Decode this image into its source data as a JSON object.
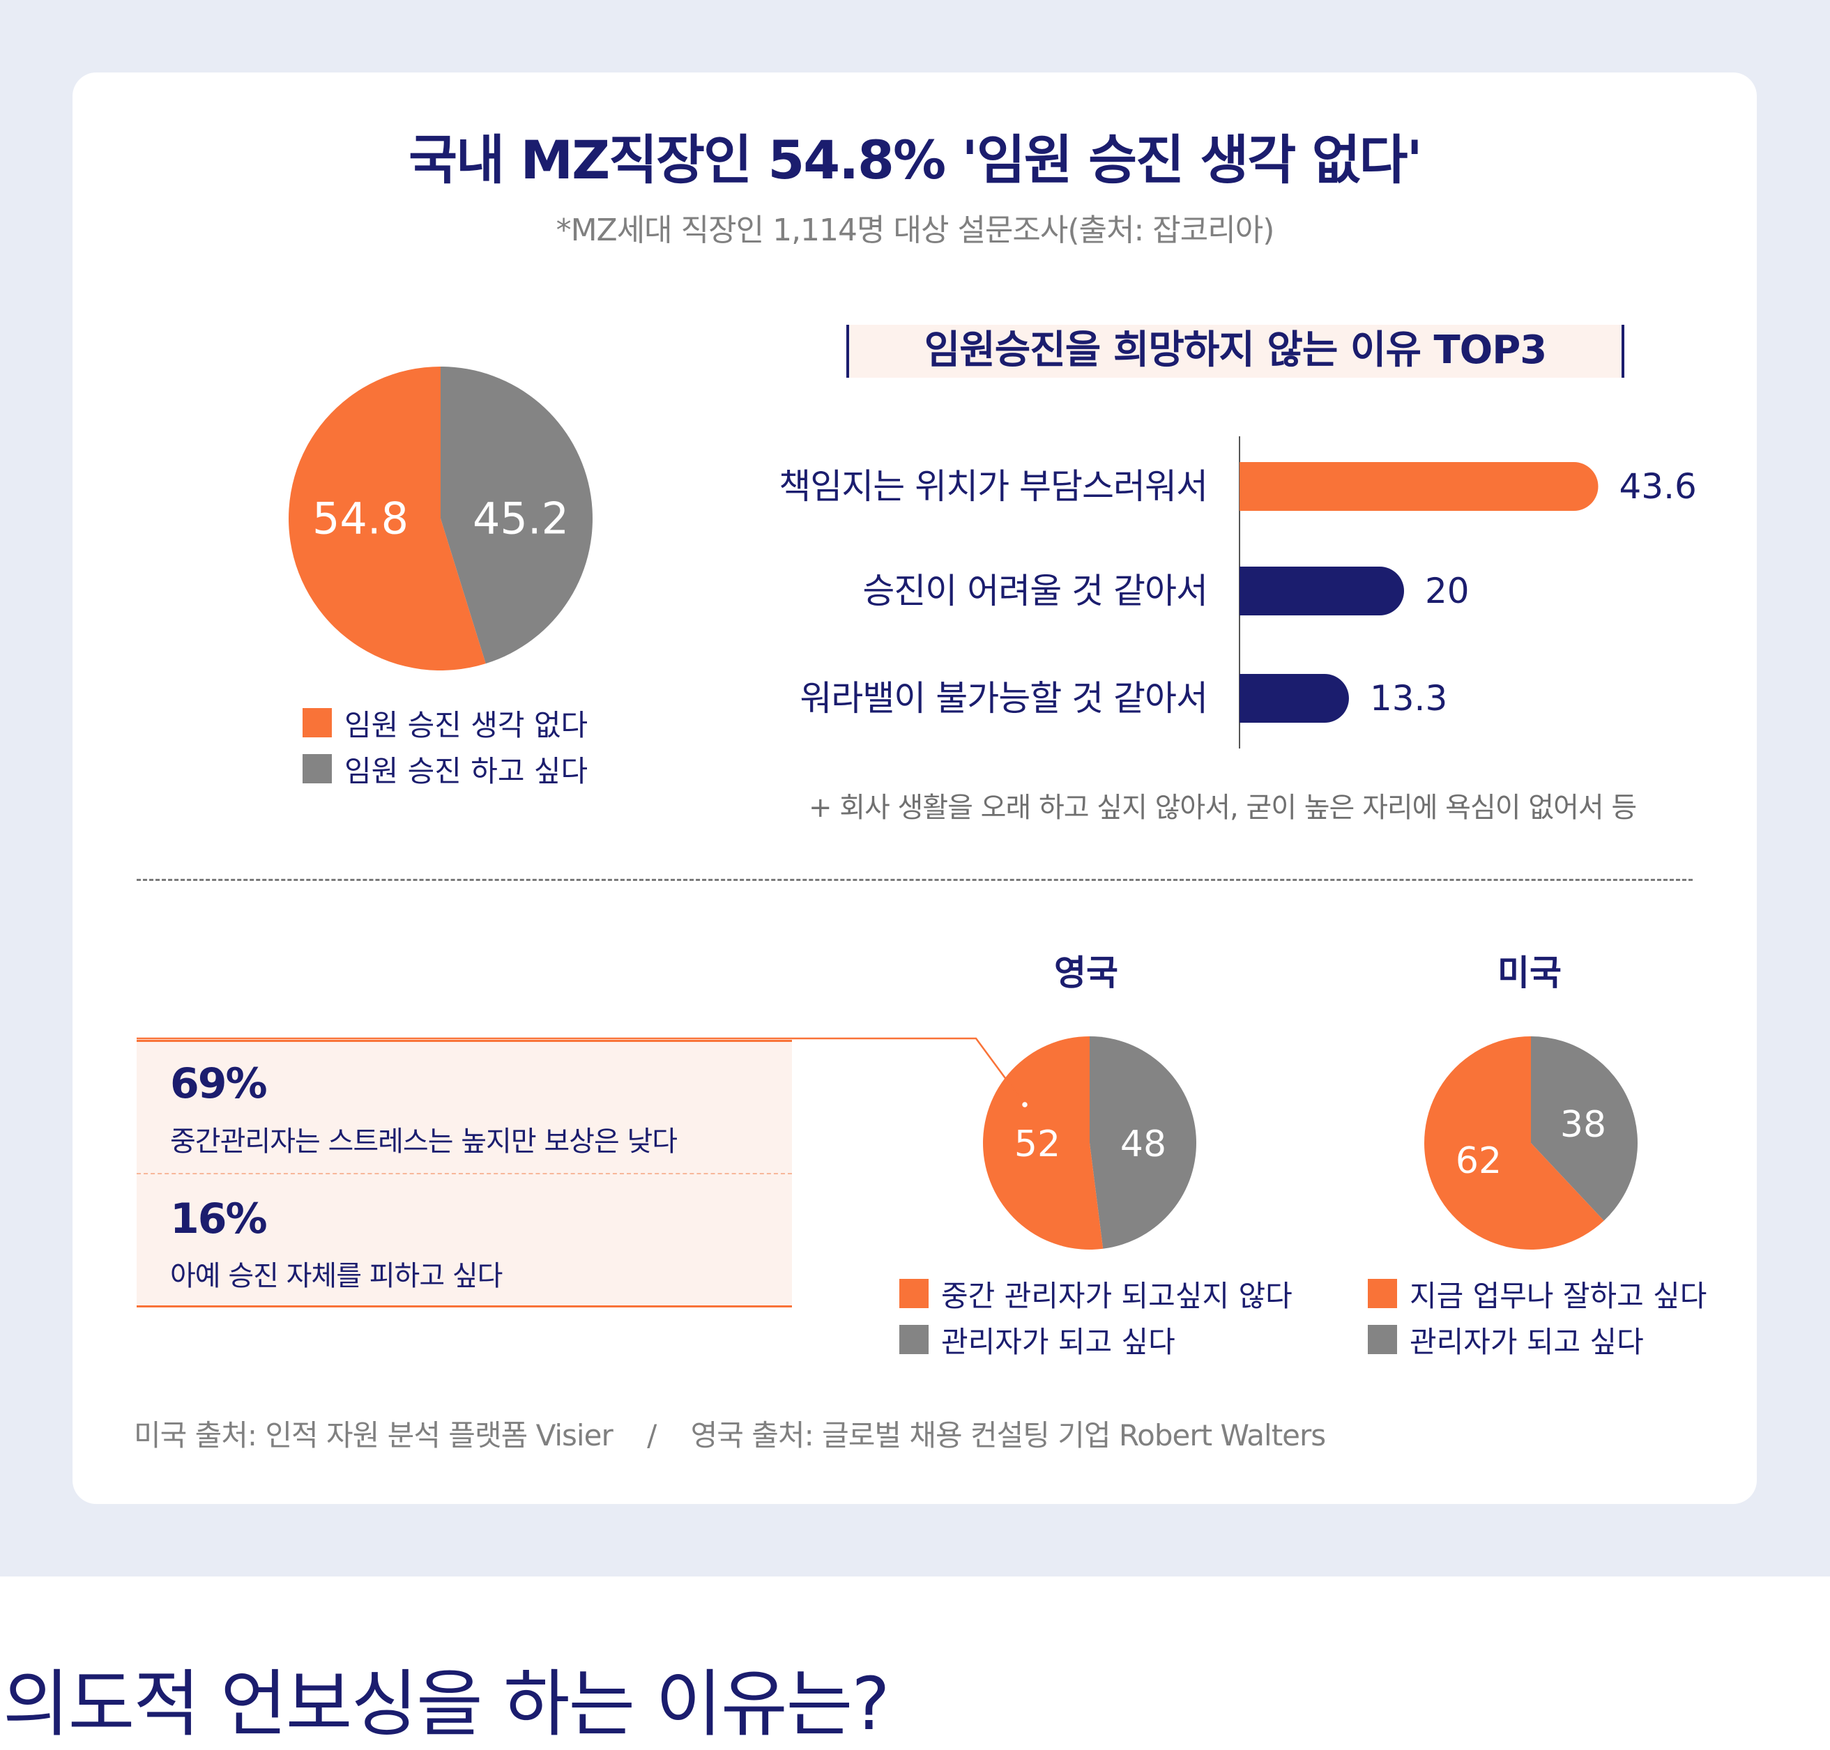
{
  "title": "국내 MZ직장인 54.8% '임원 승진 생각 없다'",
  "subtitle": "*MZ세대 직장인 1,114명 대상 설문조사(출처: 잡코리아)",
  "colors": {
    "orange": "#f97338",
    "gray": "#848484",
    "navy": "#1b1d6e"
  },
  "chart_data": [
    {
      "type": "pie",
      "slices": [
        {
          "label": "임원 승진 생각 없다",
          "value": 54.8,
          "display": "54.8",
          "color": "#f97338"
        },
        {
          "label": "임원 승진 하고 싶다",
          "value": 45.2,
          "display": "45.2",
          "color": "#848484"
        }
      ],
      "legend": [
        "임원 승진 생각 없다",
        "임원 승진 하고 싶다"
      ],
      "legend_position": "bottom"
    },
    {
      "type": "bar",
      "orientation": "horizontal",
      "title": "임원승진을 희망하지 않는 이유 TOP3",
      "categories": [
        "책임지는 위치가 부담스러워서",
        "승진이 어려울 것 같아서",
        "워라밸이 불가능할 것 같아서"
      ],
      "values": [
        43.6,
        20,
        13.3
      ],
      "value_labels": [
        "43.6",
        "20",
        "13.3"
      ],
      "bar_colors": [
        "#f97338",
        "#1b1d6e",
        "#1b1d6e"
      ],
      "note": "+ 회사 생활을 오래 하고 싶지 않아서, 굳이 높은 자리에 욕심이 없어서 등"
    },
    {
      "type": "pie",
      "title": "영국",
      "slices": [
        {
          "label": "중간 관리자가 되고싶지 않다",
          "value": 52,
          "display": "52",
          "color": "#f97338"
        },
        {
          "label": "관리자가 되고 싶다",
          "value": 48,
          "display": "48",
          "color": "#848484"
        }
      ],
      "legend": [
        "중간 관리자가 되고싶지 않다",
        "관리자가 되고 싶다"
      ],
      "legend_position": "bottom"
    },
    {
      "type": "pie",
      "title": "미국",
      "slices": [
        {
          "label": "지금 업무나 잘하고 싶다",
          "value": 62,
          "display": "62",
          "color": "#f97338"
        },
        {
          "label": "관리자가 되고 싶다",
          "value": 38,
          "display": "38",
          "color": "#848484"
        }
      ],
      "legend": [
        "지금 업무나 잘하고 싶다",
        "관리자가 되고 싶다"
      ],
      "legend_position": "bottom"
    }
  ],
  "uk_stats": [
    {
      "number": "69%",
      "text": "중간관리자는 스트레스는 높지만 보상은 낮다"
    },
    {
      "number": "16%",
      "text": "아예 승진 자체를 피하고 싶다"
    }
  ],
  "sources": "미국 출처: 인적 자원 분석 플랫폼 Visier    /    영국 출처: 글로벌 채용 컨설팅 기업 Robert Walters",
  "section_heading": "의도적 언보싱을 하는 이유는?"
}
